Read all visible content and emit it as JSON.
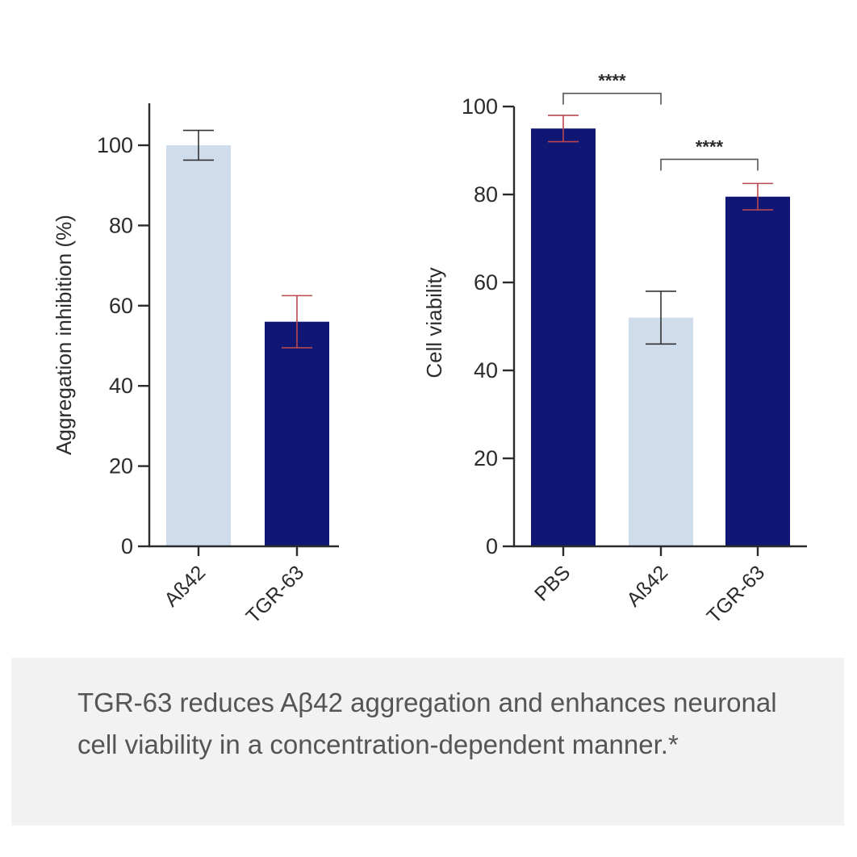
{
  "colors": {
    "dark_bar": "#0f1673",
    "light_bar": "#cfdcec",
    "axis": "#2b2b2b",
    "err_red": "#b8474f",
    "err_dark": "#333333"
  },
  "chart_data": [
    {
      "type": "bar",
      "categories": [
        "Aß42",
        "TGR-63"
      ],
      "values": [
        100,
        56
      ],
      "errors": [
        3.7,
        6.5
      ],
      "bar_colors": [
        "light",
        "dark"
      ],
      "error_colors": [
        "dark",
        "red"
      ],
      "title": "",
      "xlabel": "",
      "ylabel": "Aggregation inhibition (%)",
      "ylim": [
        0,
        110
      ],
      "yticks": [
        0,
        20,
        40,
        60,
        80,
        100
      ],
      "ytick_labels": [
        "0",
        "20",
        "40",
        "60",
        "80",
        "100"
      ]
    },
    {
      "type": "bar",
      "categories": [
        "PBS",
        "Aß42",
        "TGR-63"
      ],
      "values": [
        95,
        52,
        79.5
      ],
      "errors": [
        3,
        6,
        3
      ],
      "bar_colors": [
        "dark",
        "light",
        "dark"
      ],
      "error_colors": [
        "red",
        "dark",
        "red"
      ],
      "title": "",
      "xlabel": "",
      "ylabel": "Cell viability",
      "ylim": [
        0,
        100
      ],
      "yticks": [
        0,
        20,
        40,
        60,
        80,
        100
      ],
      "ytick_labels": [
        "0",
        "20",
        "40",
        "60",
        "80",
        "100"
      ],
      "significance": [
        {
          "from": 0,
          "to": 1,
          "label": "****",
          "level": 103
        },
        {
          "from": 1,
          "to": 2,
          "label": "****",
          "level": 88
        }
      ]
    }
  ],
  "caption": {
    "text": "TGR-63 reduces Aβ42 aggregation and enhances neuronal cell viability in a concentration-dependent manner.*"
  }
}
